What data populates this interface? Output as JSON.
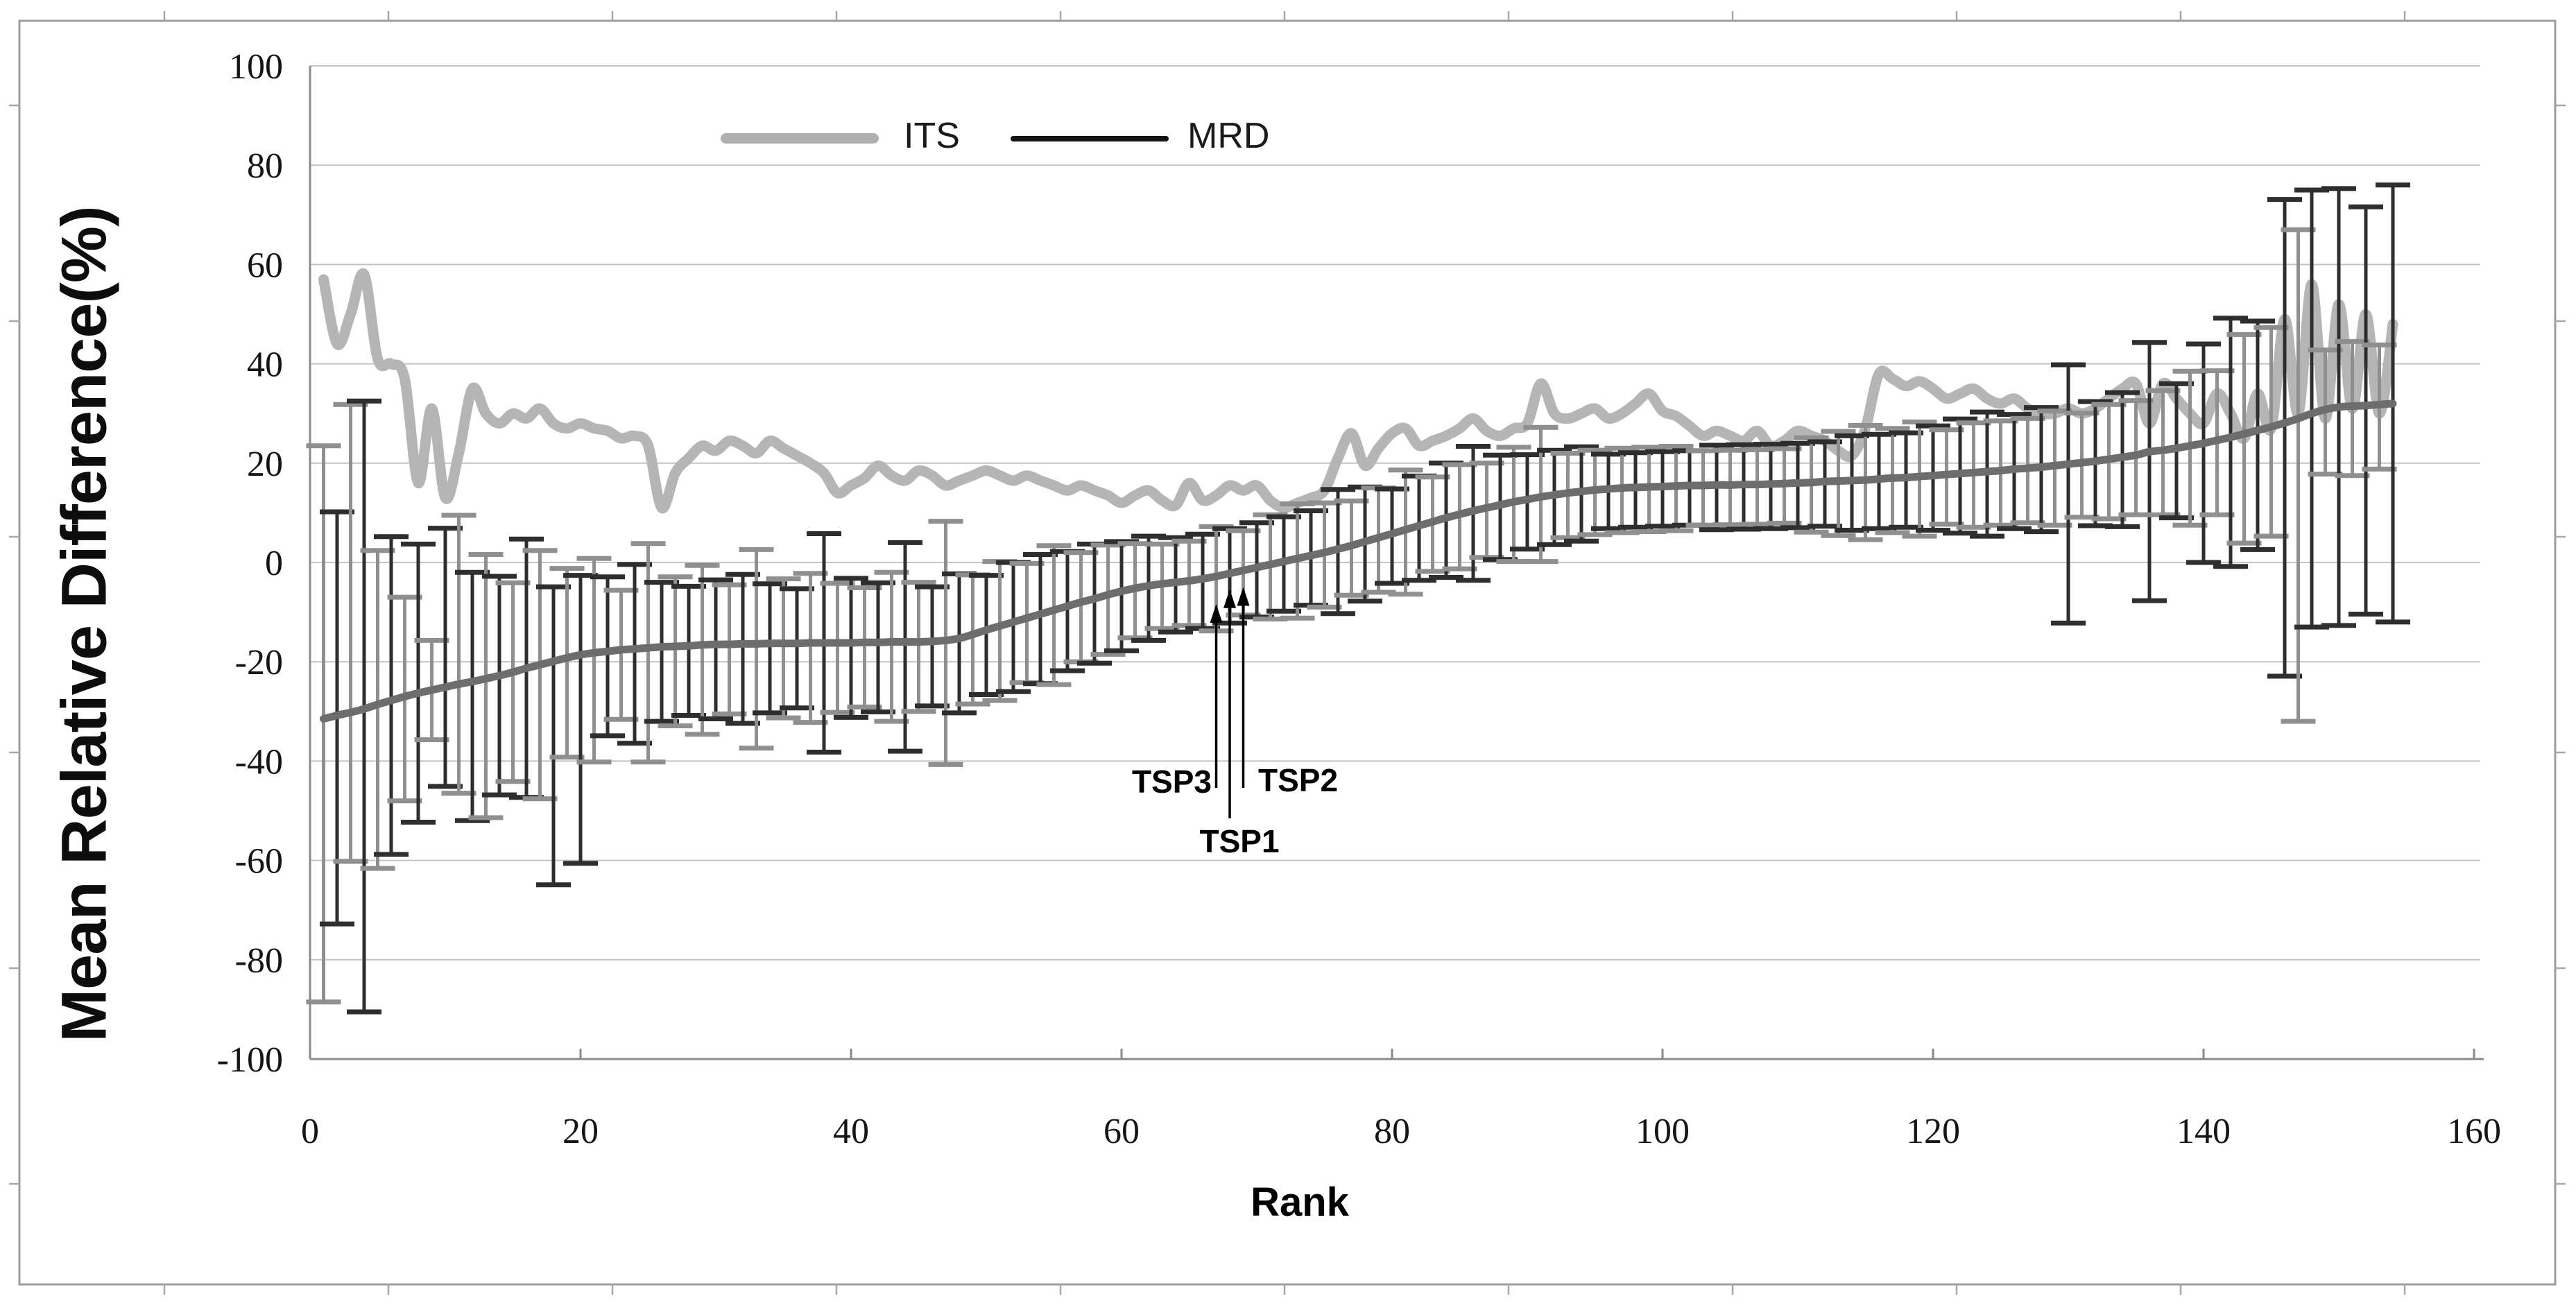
{
  "figure": {
    "background": "#ffffff",
    "frame_color": "#9c9c9c",
    "gridline_color": "#c4c4c4",
    "axis_color": "#8a8a8a",
    "tick_label_color": "#151515"
  },
  "chart_data": {
    "type": "line",
    "title": "",
    "xlabel": "Rank",
    "ylabel": "Mean Relative Difference(%)",
    "xlim": [
      0,
      160
    ],
    "ylim": [
      -100,
      100
    ],
    "x_ticks": [
      0,
      20,
      40,
      60,
      80,
      100,
      120,
      140,
      160
    ],
    "y_ticks": [
      100,
      80,
      60,
      40,
      20,
      0,
      -20,
      -40,
      -60,
      -80,
      -100
    ],
    "grid": true,
    "legend_position": "top-center-inside",
    "rank_start": 1,
    "series": [
      {
        "name": "ITS",
        "style": "smooth-line",
        "color": "#b5b5b5",
        "stroke_width": 15,
        "values": [
          57,
          44,
          50,
          58,
          41,
          40,
          37,
          16,
          31,
          13,
          22,
          35,
          30,
          28,
          30,
          29,
          31,
          28,
          27,
          28,
          27,
          26.5,
          25,
          25.5,
          23.5,
          11,
          18,
          21,
          23.5,
          22.5,
          24.5,
          23.5,
          22,
          24.5,
          23,
          21.5,
          20,
          18,
          14,
          15.5,
          17,
          19.5,
          17.5,
          16.5,
          18.5,
          17.5,
          15.5,
          16.5,
          17.5,
          18.5,
          17.5,
          16.5,
          17.5,
          16.5,
          15.5,
          14.5,
          15.5,
          14.5,
          13.5,
          12,
          13.5,
          14.5,
          12.5,
          11.5,
          16,
          12.5,
          13.5,
          15.5,
          14.5,
          15.5,
          12.5,
          11,
          12,
          13,
          14.5,
          21,
          26,
          19.5,
          23,
          26,
          27,
          23.5,
          24.5,
          25.5,
          27,
          29,
          26.5,
          25.5,
          27,
          28,
          36,
          30,
          29,
          30,
          31,
          29,
          30,
          32,
          34,
          30.5,
          29.5,
          27.5,
          25.5,
          26.5,
          25.5,
          24.5,
          26.5,
          23.5,
          24.5,
          26.5,
          25.5,
          24.5,
          22.5,
          21.5,
          27,
          38,
          37,
          35.5,
          36.5,
          35,
          33,
          34,
          35,
          33,
          32,
          33,
          31,
          30,
          30,
          31,
          30,
          31,
          33,
          35,
          36,
          28,
          36,
          33,
          30,
          28,
          34,
          30,
          25,
          34,
          27,
          49,
          30,
          56,
          29,
          52,
          31,
          50,
          30,
          48
        ]
      },
      {
        "name": "MRD",
        "style": "smooth-line",
        "color": "#6d6d6d",
        "stroke_width": 11,
        "error_bar_colors": [
          "#8f8f8f",
          "#2e2e2e"
        ],
        "values": [
          -31.5,
          -30.8,
          -30.2,
          -29.5,
          -28.6,
          -27.8,
          -27,
          -26.3,
          -25.7,
          -25.1,
          -24.5,
          -24,
          -23.4,
          -22.8,
          -22.1,
          -21.3,
          -20.6,
          -19.9,
          -19.2,
          -18.6,
          -18.2,
          -17.9,
          -17.6,
          -17.4,
          -17.2,
          -17,
          -16.9,
          -16.8,
          -16.6,
          -16.5,
          -16.5,
          -16.4,
          -16.4,
          -16.3,
          -16.3,
          -16.3,
          -16.2,
          -16.2,
          -16.2,
          -16.2,
          -16.1,
          -16.1,
          -16,
          -16,
          -16,
          -15.9,
          -15.7,
          -15.3,
          -14.5,
          -13.6,
          -12.8,
          -12,
          -11.2,
          -10.4,
          -9.6,
          -8.8,
          -8,
          -7.3,
          -6.5,
          -5.8,
          -5.2,
          -4.7,
          -4.3,
          -4,
          -3.7,
          -3.3,
          -2.8,
          -2.2,
          -1.6,
          -1,
          -0.4,
          0.2,
          0.8,
          1.4,
          2,
          2.7,
          3.4,
          4.2,
          5,
          5.8,
          6.6,
          7.4,
          8.2,
          9,
          9.7,
          10.4,
          11,
          11.6,
          12.2,
          12.7,
          13.2,
          13.6,
          14,
          14.3,
          14.6,
          14.8,
          15,
          15.1,
          15.2,
          15.3,
          15.4,
          15.5,
          15.5,
          15.6,
          15.6,
          15.7,
          15.7,
          15.8,
          15.9,
          16,
          16.1,
          16.3,
          16.4,
          16.5,
          16.6,
          16.8,
          17,
          17.1,
          17.3,
          17.5,
          17.7,
          17.9,
          18.1,
          18.3,
          18.5,
          18.8,
          19,
          19.2,
          19.5,
          19.8,
          20.1,
          20.4,
          20.8,
          21.2,
          21.6,
          22.3,
          22.6,
          23,
          23.5,
          24,
          24.6,
          25.2,
          25.9,
          26.6,
          27.3,
          28.1,
          29,
          30,
          30.8,
          31.3,
          31.5,
          31.6,
          31.8,
          32
        ],
        "error_up": [
          55,
          41,
          62,
          62,
          31,
          33,
          20,
          30,
          10,
          32,
          34,
          22,
          25,
          20,
          18,
          26,
          23,
          15,
          18,
          16,
          19,
          15,
          12,
          17,
          21,
          13,
          14,
          12,
          16,
          13,
          12,
          14,
          19,
          12,
          13,
          11,
          14,
          22,
          12,
          13,
          11,
          12,
          14,
          20,
          12,
          11,
          24,
          13,
          12,
          11,
          13,
          12,
          11,
          12,
          13,
          11,
          10,
          11,
          10,
          10,
          9,
          10,
          8,
          9,
          8,
          9,
          10,
          9,
          8,
          9,
          10,
          9,
          11,
          9,
          10,
          12,
          9,
          11,
          10,
          9,
          12,
          10,
          9,
          11,
          10,
          13,
          9,
          10,
          11,
          9,
          14,
          9,
          8,
          9,
          8,
          7,
          8,
          7,
          8,
          7,
          8,
          7,
          7,
          8,
          7,
          8,
          7,
          8,
          7,
          8,
          9,
          8,
          10,
          9,
          11,
          9,
          10,
          9,
          11,
          10,
          9,
          11,
          10,
          12,
          10,
          11,
          10,
          12,
          11,
          20,
          10,
          12,
          11,
          13,
          11,
          22,
          12,
          13,
          15,
          20,
          14,
          24,
          20,
          22,
          20,
          45,
          38,
          45,
          12,
          44,
          13,
          40,
          12,
          44
        ],
        "error_down": [
          57,
          42,
          30,
          61,
          33,
          31,
          21,
          26,
          10,
          20,
          22,
          28,
          28,
          24,
          22,
          26,
          27,
          45,
          20,
          42,
          22,
          17,
          14,
          19,
          23,
          15,
          16,
          14,
          18,
          15,
          14,
          16,
          21,
          14,
          15,
          13,
          16,
          22,
          14,
          15,
          13,
          14,
          16,
          22,
          14,
          13,
          25,
          15,
          14,
          13,
          15,
          14,
          13,
          14,
          15,
          13,
          12,
          13,
          12,
          12,
          10,
          11,
          9,
          10,
          9,
          10,
          11,
          10,
          9,
          10,
          11,
          10,
          12,
          10,
          11,
          13,
          10,
          12,
          11,
          10,
          13,
          11,
          10,
          12,
          11,
          14,
          10,
          11,
          12,
          10,
          13,
          10,
          9,
          10,
          9,
          8,
          9,
          8,
          9,
          8,
          9,
          8,
          8,
          9,
          8,
          9,
          8,
          9,
          8,
          9,
          10,
          9,
          11,
          10,
          12,
          10,
          11,
          10,
          12,
          11,
          10,
          12,
          11,
          13,
          11,
          12,
          11,
          13,
          12,
          32,
          11,
          13,
          12,
          14,
          12,
          30,
          13,
          14,
          16,
          24,
          15,
          26,
          22,
          24,
          22,
          51,
          61,
          43,
          13,
          44,
          14,
          42,
          13,
          44
        ]
      }
    ],
    "annotations": [
      {
        "label": "TSP3",
        "rank": 67,
        "label_side": "left"
      },
      {
        "label": "TSP1",
        "rank": 68,
        "label_side": "below"
      },
      {
        "label": "TSP2",
        "rank": 69,
        "label_side": "right"
      }
    ]
  }
}
